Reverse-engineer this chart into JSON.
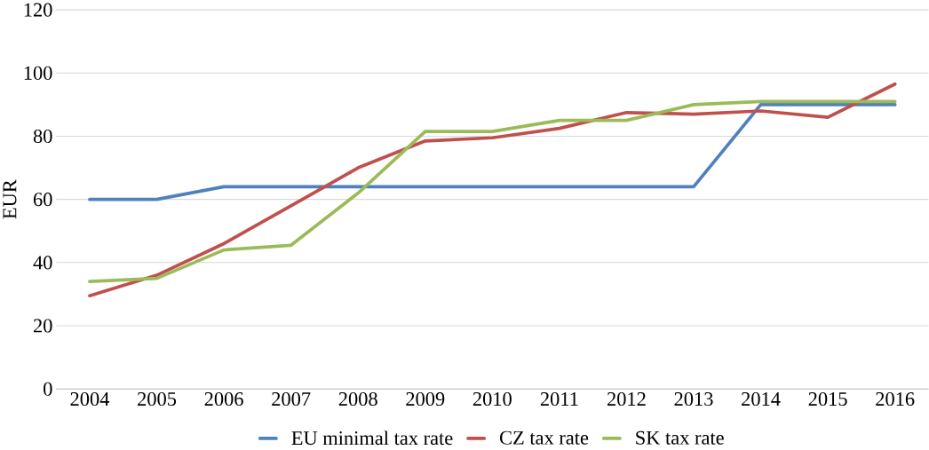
{
  "chart_data": {
    "type": "line",
    "ylabel": "EUR",
    "categories": [
      "2004",
      "2005",
      "2006",
      "2007",
      "2008",
      "2009",
      "2010",
      "2011",
      "2012",
      "2013",
      "2014",
      "2015",
      "2016"
    ],
    "series": [
      {
        "name": "EU minimal tax rate",
        "color": "#4f81bd",
        "values": [
          60,
          60,
          64,
          64,
          64,
          64,
          64,
          64,
          64,
          64,
          90,
          90,
          90
        ]
      },
      {
        "name": "CZ tax rate",
        "color": "#c0504d",
        "values": [
          29.5,
          36,
          46,
          58,
          70,
          78.5,
          79.5,
          82.5,
          87.5,
          87,
          88,
          86,
          96.5
        ]
      },
      {
        "name": "SK tax rate",
        "color": "#9bbb59",
        "values": [
          34,
          35,
          44,
          45.5,
          62,
          81.5,
          81.5,
          85,
          85,
          90,
          91,
          91,
          91
        ]
      }
    ],
    "ylim": [
      0,
      120
    ],
    "yticks": [
      0,
      20,
      40,
      60,
      80,
      100,
      120
    ],
    "grid": "y",
    "legend": "bottom",
    "marker": "none",
    "line_style": "solid"
  }
}
